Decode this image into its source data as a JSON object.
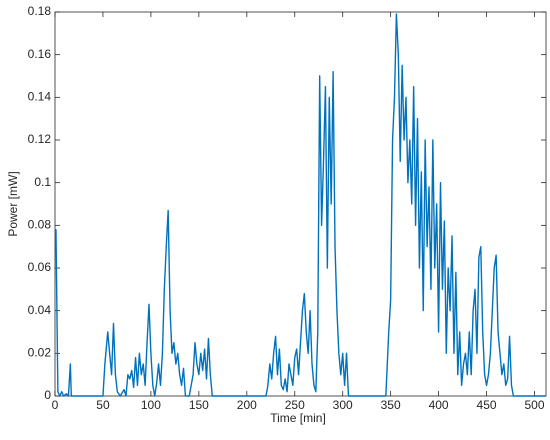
{
  "chart_data": {
    "type": "line",
    "x_label": "Time [min]",
    "y_label": "Power [mW]",
    "xlim": [
      0,
      512
    ],
    "ylim": [
      0,
      0.18
    ],
    "xticks": [
      0,
      50,
      100,
      150,
      200,
      250,
      300,
      350,
      400,
      450,
      500
    ],
    "yticks": [
      0,
      0.02,
      0.04,
      0.06,
      0.08,
      0.1,
      0.12,
      0.14,
      0.16,
      0.18
    ],
    "color": "#0072bd",
    "x": [
      0,
      1,
      2,
      3,
      5,
      7,
      9,
      12,
      14,
      16,
      17,
      20,
      50,
      52,
      55,
      57,
      59,
      61,
      63,
      65,
      68,
      72,
      74,
      76,
      78,
      80,
      82,
      84,
      86,
      88,
      90,
      92,
      94,
      96,
      98,
      100,
      102,
      104,
      106,
      108,
      110,
      112,
      114,
      116,
      118,
      120,
      122,
      124,
      126,
      128,
      130,
      132,
      134,
      136,
      140,
      144,
      146,
      148,
      150,
      152,
      154,
      156,
      158,
      160,
      162,
      164,
      170,
      220,
      222,
      224,
      226,
      228,
      230,
      232,
      234,
      236,
      238,
      240,
      242,
      244,
      246,
      248,
      250,
      252,
      254,
      256,
      258,
      260,
      262,
      264,
      266,
      268,
      270,
      272,
      274,
      276,
      278,
      280,
      282,
      284,
      286,
      288,
      290,
      292,
      294,
      296,
      298,
      300,
      302,
      304,
      306,
      310,
      345,
      348,
      350,
      352,
      354,
      356,
      358,
      360,
      362,
      364,
      366,
      368,
      370,
      372,
      374,
      376,
      378,
      380,
      382,
      384,
      386,
      388,
      390,
      392,
      394,
      396,
      398,
      400,
      402,
      404,
      406,
      408,
      410,
      412,
      414,
      416,
      418,
      420,
      422,
      424,
      426,
      428,
      430,
      432,
      434,
      436,
      438,
      440,
      442,
      444,
      446,
      448,
      450,
      452,
      454,
      456,
      458,
      460,
      462,
      464,
      466,
      468,
      470,
      472,
      474,
      476,
      478,
      512
    ],
    "values": [
      0.077,
      0.078,
      0.04,
      0.002,
      0,
      0.002,
      0,
      0.001,
      0,
      0.015,
      0,
      0,
      0,
      0.015,
      0.03,
      0.02,
      0.01,
      0.034,
      0.01,
      0.002,
      0,
      0.003,
      0,
      0.01,
      0.008,
      0.012,
      0.004,
      0.018,
      0.005,
      0.02,
      0.01,
      0.015,
      0.005,
      0.025,
      0.043,
      0.02,
      0.005,
      0,
      0.006,
      0.015,
      0.005,
      0.02,
      0.05,
      0.07,
      0.087,
      0.04,
      0.02,
      0.025,
      0.015,
      0.02,
      0.01,
      0.005,
      0.013,
      0,
      0,
      0.01,
      0.025,
      0.015,
      0.01,
      0.02,
      0.012,
      0.022,
      0.008,
      0.027,
      0.01,
      0,
      0,
      0,
      0.005,
      0.015,
      0.008,
      0.02,
      0.028,
      0.01,
      0.022,
      0.005,
      0.003,
      0.008,
      0.002,
      0.015,
      0.01,
      0.005,
      0.018,
      0.022,
      0.01,
      0.025,
      0.04,
      0.048,
      0.03,
      0.02,
      0.04,
      0.015,
      0.005,
      0.002,
      0.03,
      0.15,
      0.08,
      0.11,
      0.145,
      0.06,
      0.14,
      0.09,
      0.152,
      0.07,
      0.04,
      0.02,
      0.01,
      0.02,
      0.005,
      0.02,
      0,
      0,
      0,
      0.03,
      0.045,
      0.12,
      0.14,
      0.179,
      0.16,
      0.11,
      0.155,
      0.12,
      0.14,
      0.1,
      0.12,
      0.09,
      0.145,
      0.08,
      0.13,
      0.06,
      0.105,
      0.04,
      0.12,
      0.07,
      0.098,
      0.05,
      0.12,
      0.06,
      0.09,
      0.03,
      0.1,
      0.05,
      0.082,
      0.02,
      0.06,
      0.04,
      0.075,
      0.02,
      0.058,
      0.01,
      0.03,
      0.005,
      0.015,
      0.02,
      0.01,
      0.03,
      0.01,
      0.04,
      0.05,
      0.02,
      0.065,
      0.07,
      0.03,
      0.01,
      0.005,
      0.01,
      0.02,
      0.04,
      0.06,
      0.066,
      0.03,
      0.02,
      0.01,
      0.015,
      0.005,
      0.008,
      0.028,
      0.005,
      0,
      0
    ]
  }
}
